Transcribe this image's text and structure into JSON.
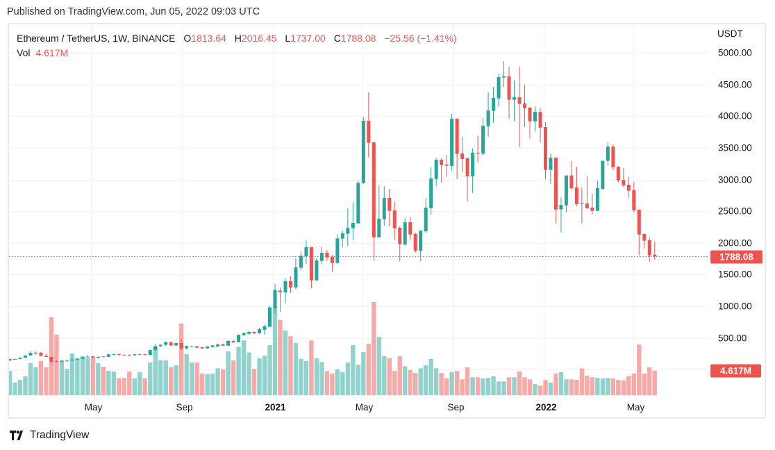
{
  "published": "Published on TradingView.com, Jun 05, 2022 09:03 UTC",
  "legend": {
    "symbol": "Ethereum / TetherUS, 1W, BINANCE",
    "open_label": "O",
    "open": "1813.64",
    "high_label": "H",
    "high": "2016.45",
    "low_label": "L",
    "low": "1737.00",
    "close_label": "C",
    "close": "1788.08",
    "change": "−25.56 (−1.41%)",
    "vol_label": "Vol",
    "vol": "4.617M"
  },
  "price_axis": {
    "currency": "USDT",
    "labels": [
      "5000.00",
      "4500.00",
      "4000.00",
      "3500.00",
      "3000.00",
      "2500.00",
      "2000.00",
      "1500.00",
      "1000.00",
      "500.00"
    ],
    "last_price_tag": "1788.08",
    "last_volume_tag": "4.617M"
  },
  "footer": {
    "brand": "TradingView"
  },
  "colors": {
    "up": "#26a69a",
    "down": "#ef5350",
    "up_volume": "#92d2cc",
    "down_volume": "#f7a9a7",
    "grid": "#f0f3fa"
  },
  "chart_data": {
    "type": "candlestick",
    "title": "Ethereum / TetherUS, 1W, BINANCE",
    "ylabel": "USDT",
    "ylim": [
      0,
      5000
    ],
    "grid": true,
    "volume_unit": "M",
    "x_ticks": [
      {
        "label": "May",
        "date": "2020-05-01",
        "bold": false
      },
      {
        "label": "Sep",
        "date": "2020-09-01",
        "bold": false
      },
      {
        "label": "2021",
        "date": "2021-01-01",
        "bold": true
      },
      {
        "label": "May",
        "date": "2021-05-01",
        "bold": false
      },
      {
        "label": "Sep",
        "date": "2021-09-01",
        "bold": false
      },
      {
        "label": "2022",
        "date": "2022-01-01",
        "bold": true
      },
      {
        "label": "May",
        "date": "2022-05-01",
        "bold": false
      }
    ],
    "columns": [
      "date",
      "open",
      "high",
      "low",
      "close",
      "volume"
    ],
    "candles": [
      [
        "2020-01-13",
        144,
        175,
        141,
        167,
        4.6
      ],
      [
        "2020-01-20",
        167,
        176,
        152,
        168,
        2.4
      ],
      [
        "2020-01-27",
        168,
        190,
        163,
        189,
        2.9
      ],
      [
        "2020-02-03",
        189,
        229,
        188,
        223,
        3.6
      ],
      [
        "2020-02-10",
        223,
        288,
        220,
        265,
        6.1
      ],
      [
        "2020-02-17",
        258,
        287,
        240,
        268,
        5.3
      ],
      [
        "2020-02-24",
        268,
        278,
        209,
        218,
        6.5
      ],
      [
        "2020-03-02",
        218,
        253,
        195,
        200,
        5.3
      ],
      [
        "2020-03-09",
        200,
        205,
        86,
        124,
        14.8
      ],
      [
        "2020-03-16",
        133,
        150,
        117,
        125,
        11.5
      ],
      [
        "2020-03-23",
        125,
        145,
        122,
        131,
        6.7
      ],
      [
        "2020-03-30",
        131,
        150,
        124,
        143,
        5.0
      ],
      [
        "2020-04-06",
        143,
        175,
        142,
        158,
        7.9
      ],
      [
        "2020-04-13",
        158,
        173,
        148,
        170,
        7.0
      ],
      [
        "2020-04-20",
        170,
        198,
        166,
        194,
        7.4
      ],
      [
        "2020-04-27",
        194,
        228,
        187,
        205,
        7.0
      ],
      [
        "2020-05-04",
        210,
        216,
        182,
        186,
        7.0
      ],
      [
        "2020-05-11",
        186,
        210,
        178,
        200,
        6.1
      ],
      [
        "2020-05-18",
        208,
        215,
        196,
        202,
        5.4
      ],
      [
        "2020-05-25",
        202,
        247,
        198,
        240,
        4.6
      ],
      [
        "2020-06-01",
        240,
        253,
        226,
        245,
        4.5
      ],
      [
        "2020-06-08",
        245,
        251,
        214,
        234,
        3.2
      ],
      [
        "2020-06-15",
        234,
        240,
        222,
        228,
        3.3
      ],
      [
        "2020-06-22",
        228,
        245,
        215,
        225,
        4.5
      ],
      [
        "2020-06-29",
        225,
        245,
        220,
        242,
        3.2
      ],
      [
        "2020-07-06",
        238,
        250,
        234,
        242,
        4.4
      ],
      [
        "2020-07-13",
        242,
        245,
        227,
        232,
        3.2
      ],
      [
        "2020-07-20",
        230,
        318,
        225,
        310,
        6.2
      ],
      [
        "2020-07-27",
        310,
        408,
        300,
        370,
        9.2
      ],
      [
        "2020-08-03",
        370,
        400,
        355,
        392,
        6.6
      ],
      [
        "2020-08-10",
        392,
        445,
        375,
        434,
        6.6
      ],
      [
        "2020-08-17",
        434,
        440,
        375,
        380,
        5.3
      ],
      [
        "2020-08-24",
        380,
        430,
        370,
        419,
        5.7
      ],
      [
        "2020-08-31",
        419,
        485,
        300,
        335,
        13.6
      ],
      [
        "2020-09-07",
        335,
        378,
        322,
        372,
        7.8
      ],
      [
        "2020-09-14",
        360,
        380,
        350,
        366,
        6.2
      ],
      [
        "2020-09-21",
        368,
        376,
        340,
        346,
        6.2
      ],
      [
        "2020-09-28",
        353,
        360,
        325,
        335,
        4.1
      ],
      [
        "2020-10-05",
        335,
        370,
        330,
        366,
        4.0
      ],
      [
        "2020-10-12",
        355,
        388,
        350,
        382,
        4.1
      ],
      [
        "2020-10-19",
        365,
        408,
        360,
        400,
        5.1
      ],
      [
        "2020-10-26",
        400,
        410,
        370,
        378,
        4.9
      ],
      [
        "2020-11-02",
        378,
        465,
        372,
        452,
        8.3
      ],
      [
        "2020-11-09",
        452,
        470,
        425,
        432,
        6.6
      ],
      [
        "2020-11-16",
        432,
        555,
        428,
        550,
        9.2
      ],
      [
        "2020-11-23",
        545,
        590,
        530,
        575,
        10.4
      ],
      [
        "2020-11-30",
        565,
        610,
        555,
        595,
        8.1
      ],
      [
        "2020-12-07",
        595,
        600,
        560,
        573,
        5.0
      ],
      [
        "2020-12-14",
        573,
        660,
        565,
        638,
        7.0
      ],
      [
        "2020-12-21",
        628,
        711,
        550,
        682,
        7.5
      ],
      [
        "2020-12-28",
        675,
        1010,
        670,
        982,
        9.5
      ],
      [
        "2021-01-04",
        967,
        1354,
        891,
        1256,
        16.8
      ],
      [
        "2021-01-11",
        1248,
        1296,
        912,
        1223,
        14.3
      ],
      [
        "2021-01-18",
        1219,
        1442,
        1048,
        1395,
        12.3
      ],
      [
        "2021-01-25",
        1395,
        1475,
        1212,
        1296,
        11.2
      ],
      [
        "2021-02-01",
        1296,
        1760,
        1267,
        1614,
        9.9
      ],
      [
        "2021-02-08",
        1607,
        1866,
        1566,
        1796,
        6.9
      ],
      [
        "2021-02-15",
        1789,
        2041,
        1661,
        1932,
        6.5
      ],
      [
        "2021-02-22",
        1932,
        1940,
        1289,
        1409,
        10.4
      ],
      [
        "2021-03-01",
        1409,
        1760,
        1400,
        1724,
        7.0
      ],
      [
        "2021-03-08",
        1716,
        1943,
        1661,
        1844,
        6.3
      ],
      [
        "2021-03-15",
        1844,
        1888,
        1716,
        1771,
        4.6
      ],
      [
        "2021-03-22",
        1778,
        1808,
        1541,
        1683,
        4.1
      ],
      [
        "2021-03-29",
        1683,
        2136,
        1670,
        2070,
        4.9
      ],
      [
        "2021-04-05",
        2067,
        2195,
        1935,
        2151,
        4.4
      ],
      [
        "2021-04-12",
        2144,
        2545,
        1950,
        2235,
        6.2
      ],
      [
        "2021-04-19",
        2231,
        2644,
        2052,
        2315,
        9.5
      ],
      [
        "2021-04-26",
        2308,
        2984,
        2300,
        2947,
        5.8
      ],
      [
        "2021-05-03",
        2944,
        3988,
        2930,
        3926,
        8.2
      ],
      [
        "2021-05-10",
        3926,
        4372,
        3349,
        3579,
        9.8
      ],
      [
        "2021-05-17",
        3586,
        3590,
        1724,
        2089,
        17.7
      ],
      [
        "2021-05-24",
        2089,
        2910,
        2078,
        2381,
        11.1
      ],
      [
        "2021-05-31",
        2374,
        2892,
        2271,
        2710,
        7.4
      ],
      [
        "2021-06-07",
        2710,
        2852,
        2264,
        2505,
        7.0
      ],
      [
        "2021-06-14",
        2512,
        2647,
        2045,
        2231,
        4.6
      ],
      [
        "2021-06-21",
        2238,
        2260,
        1705,
        1979,
        7.4
      ],
      [
        "2021-06-28",
        1972,
        2392,
        1961,
        2326,
        5.5
      ],
      [
        "2021-07-05",
        2326,
        2413,
        2045,
        2132,
        4.8
      ],
      [
        "2021-07-12",
        2143,
        2161,
        1851,
        1877,
        4.2
      ],
      [
        "2021-07-19",
        1877,
        2194,
        1705,
        2194,
        5.1
      ],
      [
        "2021-07-26",
        2183,
        2699,
        2158,
        2556,
        5.7
      ],
      [
        "2021-08-02",
        2549,
        3192,
        2446,
        3016,
        6.9
      ],
      [
        "2021-08-09",
        3009,
        3338,
        2899,
        3312,
        5.1
      ],
      [
        "2021-08-16",
        3312,
        3338,
        2951,
        3228,
        4.2
      ],
      [
        "2021-08-23",
        3235,
        3382,
        3049,
        3217,
        3.2
      ],
      [
        "2021-08-30",
        3214,
        4036,
        3148,
        3959,
        4.4
      ],
      [
        "2021-09-06",
        3959,
        3970,
        3005,
        3404,
        4.6
      ],
      [
        "2021-09-13",
        3411,
        3674,
        3111,
        3323,
        3.0
      ],
      [
        "2021-09-20",
        3338,
        3349,
        2655,
        3049,
        5.3
      ],
      [
        "2021-09-27",
        3049,
        3488,
        2786,
        3422,
        3.4
      ],
      [
        "2021-10-04",
        3422,
        3696,
        3268,
        3414,
        3.4
      ],
      [
        "2021-10-11",
        3407,
        3970,
        3378,
        3849,
        3.2
      ],
      [
        "2021-10-18",
        3842,
        4375,
        3674,
        4090,
        3.3
      ],
      [
        "2021-10-25",
        4083,
        4463,
        3893,
        4288,
        3.6
      ],
      [
        "2021-11-01",
        4280,
        4671,
        4149,
        4616,
        2.6
      ],
      [
        "2021-11-08",
        4609,
        4868,
        4463,
        4627,
        2.6
      ],
      [
        "2021-11-15",
        4627,
        4781,
        3959,
        4258,
        3.4
      ],
      [
        "2021-11-22",
        4258,
        4561,
        3919,
        4298,
        3.4
      ],
      [
        "2021-11-29",
        4298,
        4781,
        3510,
        4193,
        4.5
      ],
      [
        "2021-12-06",
        4200,
        4496,
        3827,
        4127,
        3.4
      ],
      [
        "2021-12-13",
        4134,
        4145,
        3652,
        3919,
        3.0
      ],
      [
        "2021-12-20",
        3919,
        4152,
        3762,
        4068,
        2.1
      ],
      [
        "2021-12-27",
        4068,
        4130,
        3586,
        3820,
        1.8
      ],
      [
        "2022-01-03",
        3827,
        3904,
        3005,
        3152,
        2.9
      ],
      [
        "2022-01-10",
        3152,
        3411,
        2929,
        3345,
        2.4
      ],
      [
        "2022-01-17",
        3345,
        3350,
        2308,
        2527,
        4.1
      ],
      [
        "2022-01-24",
        2527,
        2720,
        2162,
        2600,
        4.4
      ],
      [
        "2022-01-31",
        2593,
        3064,
        2483,
        3064,
        3.0
      ],
      [
        "2022-02-07",
        3064,
        3290,
        2844,
        2863,
        3.0
      ],
      [
        "2022-02-14",
        2874,
        3203,
        2582,
        2611,
        2.9
      ],
      [
        "2022-02-21",
        2622,
        2874,
        2308,
        2614,
        5.1
      ],
      [
        "2022-02-28",
        2622,
        3049,
        2538,
        2545,
        3.7
      ],
      [
        "2022-03-07",
        2556,
        2775,
        2454,
        2505,
        3.4
      ],
      [
        "2022-03-14",
        2505,
        2983,
        2500,
        2863,
        3.3
      ],
      [
        "2022-03-21",
        2852,
        3301,
        2837,
        3294,
        3.2
      ],
      [
        "2022-03-28",
        3294,
        3586,
        3217,
        3520,
        3.3
      ],
      [
        "2022-04-04",
        3520,
        3553,
        3148,
        3195,
        3.2
      ],
      [
        "2022-04-11",
        3203,
        3210,
        2954,
        2987,
        2.9
      ],
      [
        "2022-04-18",
        2994,
        3181,
        2885,
        2907,
        2.8
      ],
      [
        "2022-04-25",
        2918,
        3038,
        2710,
        2823,
        3.6
      ],
      [
        "2022-05-02",
        2830,
        2961,
        2483,
        2516,
        4.1
      ],
      [
        "2022-05-09",
        2523,
        2530,
        1804,
        2132,
        9.6
      ],
      [
        "2022-05-16",
        2140,
        2150,
        1906,
        2034,
        4.1
      ],
      [
        "2022-05-23",
        2041,
        2085,
        1705,
        1803,
        5.3
      ],
      [
        "2022-05-30",
        1813.64,
        2016.45,
        1737.0,
        1788.08,
        4.617
      ]
    ]
  }
}
